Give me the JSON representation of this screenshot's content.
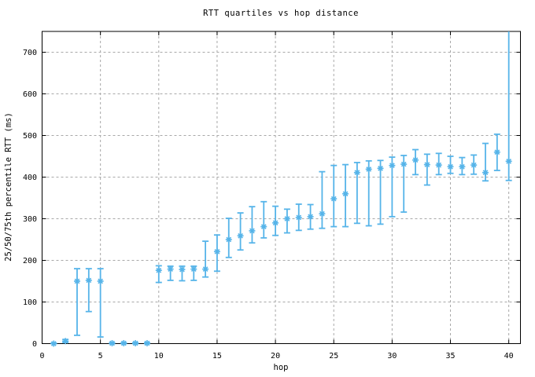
{
  "chart_data": {
    "type": "scatter",
    "subtype": "median-with-quartile-error-bars",
    "title": "RTT quartiles vs hop distance",
    "xlabel": "hop",
    "ylabel": "25/50/75th percentile RTT (ms)",
    "xlim": [
      0,
      41
    ],
    "ylim": [
      0,
      750
    ],
    "x_ticks": [
      0,
      5,
      10,
      15,
      20,
      25,
      30,
      35,
      40
    ],
    "y_ticks": [
      0,
      100,
      200,
      300,
      400,
      500,
      600,
      700
    ],
    "grid": true,
    "grid_style": "dashed gray",
    "legend": "none",
    "marker": "asterisk",
    "marker_color": "#56b4e9",
    "border_color": "#000000",
    "grid_color": "#a8a8a8",
    "note": "hop 40 upper whisker clipped at top of plot (75th percentile above y-range)",
    "points": [
      {
        "hop": 1,
        "q25": 0,
        "q50": 0,
        "q75": 1
      },
      {
        "hop": 2,
        "q25": 3,
        "q50": 6,
        "q75": 10
      },
      {
        "hop": 3,
        "q25": 20,
        "q50": 150,
        "q75": 180
      },
      {
        "hop": 4,
        "q25": 77,
        "q50": 152,
        "q75": 180
      },
      {
        "hop": 5,
        "q25": 16,
        "q50": 150,
        "q75": 180
      },
      {
        "hop": 6,
        "q25": 0,
        "q50": 1,
        "q75": 2
      },
      {
        "hop": 7,
        "q25": 0,
        "q50": 1,
        "q75": 2
      },
      {
        "hop": 8,
        "q25": 0,
        "q50": 1,
        "q75": 2
      },
      {
        "hop": 9,
        "q25": 0,
        "q50": 1,
        "q75": 2
      },
      {
        "hop": 10,
        "q25": 147,
        "q50": 176,
        "q75": 187
      },
      {
        "hop": 11,
        "q25": 152,
        "q50": 179,
        "q75": 186
      },
      {
        "hop": 12,
        "q25": 151,
        "q50": 178,
        "q75": 186
      },
      {
        "hop": 13,
        "q25": 152,
        "q50": 179,
        "q75": 186
      },
      {
        "hop": 14,
        "q25": 160,
        "q50": 179,
        "q75": 246
      },
      {
        "hop": 15,
        "q25": 174,
        "q50": 221,
        "q75": 261
      },
      {
        "hop": 16,
        "q25": 207,
        "q50": 250,
        "q75": 301
      },
      {
        "hop": 17,
        "q25": 225,
        "q50": 259,
        "q75": 314
      },
      {
        "hop": 18,
        "q25": 242,
        "q50": 271,
        "q75": 329
      },
      {
        "hop": 19,
        "q25": 254,
        "q50": 281,
        "q75": 341
      },
      {
        "hop": 20,
        "q25": 260,
        "q50": 290,
        "q75": 330
      },
      {
        "hop": 21,
        "q25": 266,
        "q50": 300,
        "q75": 323
      },
      {
        "hop": 22,
        "q25": 272,
        "q50": 303,
        "q75": 335
      },
      {
        "hop": 23,
        "q25": 275,
        "q50": 305,
        "q75": 334
      },
      {
        "hop": 24,
        "q25": 277,
        "q50": 312,
        "q75": 413
      },
      {
        "hop": 25,
        "q25": 281,
        "q50": 348,
        "q75": 428
      },
      {
        "hop": 26,
        "q25": 281,
        "q50": 360,
        "q75": 430
      },
      {
        "hop": 27,
        "q25": 289,
        "q50": 411,
        "q75": 435
      },
      {
        "hop": 28,
        "q25": 283,
        "q50": 419,
        "q75": 439
      },
      {
        "hop": 29,
        "q25": 287,
        "q50": 421,
        "q75": 440
      },
      {
        "hop": 30,
        "q25": 305,
        "q50": 428,
        "q75": 448
      },
      {
        "hop": 31,
        "q25": 316,
        "q50": 431,
        "q75": 452
      },
      {
        "hop": 32,
        "q25": 406,
        "q50": 441,
        "q75": 466
      },
      {
        "hop": 33,
        "q25": 381,
        "q50": 430,
        "q75": 455
      },
      {
        "hop": 34,
        "q25": 406,
        "q50": 429,
        "q75": 457
      },
      {
        "hop": 35,
        "q25": 409,
        "q50": 425,
        "q75": 450
      },
      {
        "hop": 36,
        "q25": 406,
        "q50": 425,
        "q75": 447
      },
      {
        "hop": 37,
        "q25": 407,
        "q50": 429,
        "q75": 453
      },
      {
        "hop": 38,
        "q25": 391,
        "q50": 411,
        "q75": 481
      },
      {
        "hop": 39,
        "q25": 416,
        "q50": 460,
        "q75": 503
      },
      {
        "hop": 40,
        "q25": 392,
        "q50": 438,
        "q75": 760
      }
    ]
  }
}
